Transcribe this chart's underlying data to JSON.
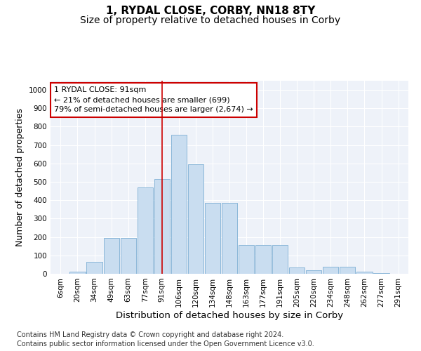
{
  "title": "1, RYDAL CLOSE, CORBY, NN18 8TY",
  "subtitle": "Size of property relative to detached houses in Corby",
  "xlabel": "Distribution of detached houses by size in Corby",
  "ylabel": "Number of detached properties",
  "footnote1": "Contains HM Land Registry data © Crown copyright and database right 2024.",
  "footnote2": "Contains public sector information licensed under the Open Government Licence v3.0.",
  "annotation_title": "1 RYDAL CLOSE: 91sqm",
  "annotation_line1": "← 21% of detached houses are smaller (699)",
  "annotation_line2": "79% of semi-detached houses are larger (2,674) →",
  "property_size_label": "91sqm",
  "bar_labels": [
    "6sqm",
    "20sqm",
    "34sqm",
    "49sqm",
    "63sqm",
    "77sqm",
    "91sqm",
    "106sqm",
    "120sqm",
    "134sqm",
    "148sqm",
    "163sqm",
    "177sqm",
    "191sqm",
    "205sqm",
    "220sqm",
    "234sqm",
    "248sqm",
    "262sqm",
    "277sqm",
    "291sqm"
  ],
  "bar_values": [
    0,
    10,
    65,
    195,
    195,
    470,
    515,
    755,
    595,
    385,
    385,
    155,
    155,
    155,
    35,
    20,
    40,
    40,
    10,
    5,
    0
  ],
  "bar_color": "#c9ddf0",
  "bar_edge_color": "#7eafd4",
  "marker_color": "#cc0000",
  "background_color": "#eef2f9",
  "grid_color": "#ffffff",
  "ylim": [
    0,
    1050
  ],
  "yticks": [
    0,
    100,
    200,
    300,
    400,
    500,
    600,
    700,
    800,
    900,
    1000
  ],
  "title_fontsize": 11,
  "subtitle_fontsize": 10,
  "axis_label_fontsize": 9,
  "tick_fontsize": 7.5,
  "annotation_fontsize": 8,
  "footnote_fontsize": 7
}
